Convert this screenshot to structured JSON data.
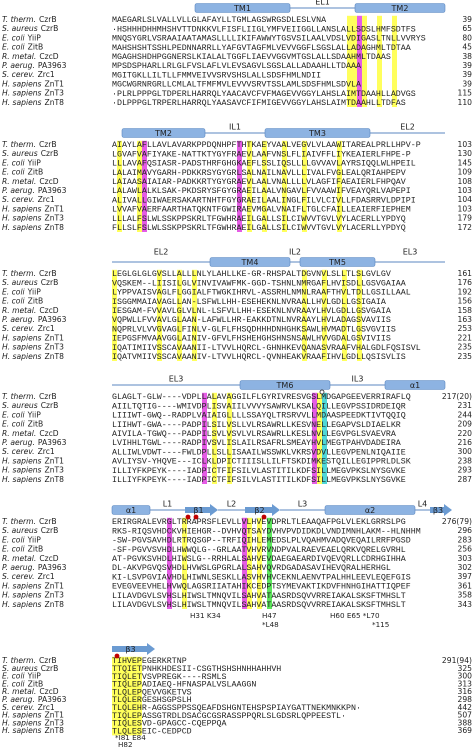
{
  "species": [
    {
      "genus": "T. therm.",
      "protein": "CzrB"
    },
    {
      "genus": "S. aureus",
      "protein": "CzrB"
    },
    {
      "genus": "E. coli",
      "protein": "YiiP"
    },
    {
      "genus": "E. coli",
      "protein": "ZitB"
    },
    {
      "genus": "R. metal.",
      "protein": "CzcD"
    },
    {
      "genus": "P. aerug.",
      "protein": "PA3963"
    },
    {
      "genus": "S. cerev.",
      "protein": "Zrc1"
    },
    {
      "genus": "H. sapiens",
      "protein": "ZnT1"
    },
    {
      "genus": "H. sapiens",
      "protein": "ZnT3"
    },
    {
      "genus": "H. sapiens",
      "protein": "ZnT8"
    }
  ],
  "blocks": [
    {
      "elements": [
        "TM1",
        "EL1",
        "TM2"
      ],
      "rows": [
        {
          "seq": "MAEGARLSLVALLVLLGLAFAYLLTGMLAGSWRGSDLESLVNA",
          "end": 39
        },
        {
          "seq": "·HSHHHDHHMHSHVTTDNKKVLFISFLIIGLYMFVEIIGGLLANSLALLSDSLHMFSDTFS",
          "end": 65
        },
        {
          "seq": "MNQSYGRLVSRAAIAATAMASLLLLIKIFAWWYTGSVSILAALVDSLVDIGASLTNLLVVRYS",
          "end": 80
        },
        {
          "seq": "MAHSHSHTSSHLPEDNNARRLLYAFGVTAGFMLVEVVGGFLSGSLALLADAGHMLTDTAA",
          "end": 45
        },
        {
          "seq": "MGAGHSHDHPGGNERSLKIALALTGGFLIAEVVGGVMTGSLALLSDAAHMLTDAAS",
          "end": 38
        },
        {
          "seq": "MPSDSPHARLLRLGLFVSLAFLVLEVSAGVLSGSLALLADAAHLLTDAAA",
          "end": 39
        },
        {
          "seq": "MGITGKLLILTLLFMMVEIVVSRVSHSLALLSDSFHMLNDII",
          "end": 39
        },
        {
          "seq": "MGCWGRNRGRLLCMLALTFMFMVLEVVVSRVTSSLAMLSDSFHMLSDVLA",
          "end": 39
        },
        {
          "seq": "·PLRLPPPGLTDPERLHARRQLYAACAVCFVFMAGEVVGGYLAHSLAIMTDAAHLLADVGS",
          "end": 115
        },
        {
          "seq": "·DLPPPGLTRPERLHARRQLYAASAVCFIFMIGEVVGGYLAHSLAIMTDAAHLLTDFAS",
          "end": 110
        }
      ],
      "annotations": []
    },
    {
      "elements": [
        "TM2",
        "IL1",
        "TM3",
        "EL2"
      ],
      "rows": [
        {
          "seq": "AIAYLAFLLAVLAVARKPPDQNHPFTHTKAEYVAALVEGVLVLAAWITAREALPRLLHPV-P",
          "end": 103
        },
        {
          "seq": "LGVAFVAFIYAKE-NATTKTYGYFRAEVLAAFVNSLFLIAIVFFLIYKEAIERLFHPE-P",
          "end": 130
        },
        {
          "seq": "LLLAVAFQSIASR-PADSTHRFGHGKAEFLSSLIQSLLLLGVVAVLAYRSIQQLWLHPEIL",
          "end": 145
        },
        {
          "seq": "LALAIMAVYGARH-PDKKRSYGYGRLSALNAILNAVLLLIVALFVGLEALQRIAHPEPV",
          "end": 109
        },
        {
          "seq": "LAIAASAIAIAR-PADKKRTYGYGRAEVLAALVNALLLLVLAGFIFAEAIERLFHPQAV",
          "end": 108
        },
        {
          "seq": "LALAWLALKLSAK-PKDSRYSFGYGRAEILAALVNGAVLFVVAAWIFVEAYQRLVAPEPI",
          "end": 103
        },
        {
          "seq": "ALIVALLGIWAERSAKARTNHTFGYGRAEILAALINGLFILVLCIVLLFDASRRVLDPIPI",
          "end": 104
        },
        {
          "seq": "LVVAFVAERFAARTHATQKNTFGWIRAEVMGALVNAIFLTGLCFAILLEAIERFIEPHEM",
          "end": 103
        },
        {
          "seq": "LLLALFSLWLSSKPPSKRLTFGWHRAEILGALLSILCIWVVTGVLVYLACERLLYPDYQ",
          "end": 179
        },
        {
          "seq": "FLLSLFSLWLSSKPPSKRLTFGWHRAEILGALLSILCIWVVTGVLVYLACERLLYPDYQ",
          "end": 172
        }
      ],
      "annotations": []
    },
    {
      "elements": [
        "EL2",
        "TM4",
        "IL2",
        "TM5",
        "EL3"
      ],
      "rows": [
        {
          "seq": "LEGLGLGLGVSLLALLLNLYLAHLLKE-GR-RHSPALTDGVNVLSLLTLSLGVLGV",
          "end": 161
        },
        {
          "seq": "VQSKEM--LIISILGLVINVIVAWFMK-GGD-TSHNLNMRGAFLHVISDLLGSVGAIAA",
          "end": 176
        },
        {
          "seq": "LYPPVAISVAGLFLGGIALFTWGKIHRVL-ASSRHLNMNLRAAFTHVLTDLLGSILLAAL",
          "end": 192
        },
        {
          "seq": "ISGGMMAIAVAGLLAN-LSFWLLHH-ESEHEKNLNVRAALLHVLGDLLGSIGAIA",
          "end": 156
        },
        {
          "seq": "IESGAM-FVVAVLGLVLNL-LSFVLLHH-ESEKNLNVRAAYLHVLGDLLGSVGAIA",
          "end": 158
        },
        {
          "seq": "VQPWLLFVVAVLGLAAN-LAFWLLHR-EAKKDTNLNVRAAYLHVLADAGSVAVIIS",
          "end": 163
        },
        {
          "seq": "NQPRLVLVVGVAGLFINLV-GLFLFHSQDHHHDNHGHKSAWLHVMADTLGSVGVIIS",
          "end": 253
        },
        {
          "seq": "IEPGSFMVAAVGGLAINIV-GFVLFHSHEHGHSHNSNSAWLHVVGDALGSVIVIIS",
          "end": 221
        },
        {
          "seq": "IQATIMIIVSSCAVAANII-LTVVLHQRCL-GHNHKEVQANASVRAAFVHALGDLFQSISVL",
          "end": 235
        },
        {
          "seq": "IQATVMIIVSSCAVAANIV-LTVVLHQRCL-QVNHEAKVRAAFIHVLGDLLQSISVLIS",
          "end": 235
        }
      ],
      "annotations": []
    },
    {
      "elements": [
        "EL3",
        "TM6",
        "IL3",
        "α1"
      ],
      "rows": [
        {
          "seq": "GLAGLT-GLW----VDPLLALAVAGGILFLGYRIVRESVGSLMDGAPGEEVERRIRAFLQ",
          "end": "217(20)"
        },
        {
          "seq": "AIILTQTIG----WMIVDPLISVAIILVVVYSAWRVLKSALQILLEGVPSSIDRDEIQR",
          "end": 231
        },
        {
          "seq": "LIIIWT-GWQ--RADPLVAIAIGLLLLSSAYQLTRSRVVLLMDAASPEEDKTIVTQQIQ",
          "end": 244
        },
        {
          "seq": "LIIHWT-GWA----PADPILSILVSLLVLRSAWRLLKESVNELLEGAPVSLDIAELKR",
          "end": 209
        },
        {
          "seq": "AIVILA-TGWQ---PADPILSVLVSVLVLRSAWRLLKESLNVLLEGVPGLSVAEVRA",
          "end": 220
        },
        {
          "seq": "LVIHHLTGWL----RADPIVSVLISLAILRSAFRLSMEAYHVLMEGTPAHVDADEIRA",
          "end": 216
        },
        {
          "seq": "ALLIWLVDWT----FWLDPLLSLLISAAILWSSWKLVKRSVDVLLEGVPENLNIQAIIE",
          "end": 300
        },
        {
          "seq": "AVLIYSV-YHQVE---ICLKLDPICTIIISLLILFTSKDIMKESTQILLEGIPPRLDLSK",
          "end": 238
        },
        {
          "seq": "ILLIYFKPEYK----IADPICTFIFSILVLASTITILKDFSILLMEGVPKSLNYSGVKE",
          "end": 293
        },
        {
          "seq": "ILLIYFKPEYK----IADPICTFIFSILVLASTITILKDFSILLMEGVPKSLNYSGVKE",
          "end": 287
        }
      ],
      "annotations": []
    },
    {
      "elements": [
        "α1",
        "L1",
        "β1",
        "L2",
        "β2",
        "L3",
        "α2",
        "L4",
        "β3"
      ],
      "rows": [
        {
          "seq": "ERIRGRALEVRGLTRRAPRSFLEVLLVLHVEVDPRLTLEAAQAFPGLVLEKLGRRSLPG",
          "end": "276(79)"
        },
        {
          "seq": "RKS-RIQSVHDCKVHIEHGR--DVHVQTSAYDVHVPVDIDKDLVNDIMNHLAKM--HLNHHM",
          "end": 296
        },
        {
          "seq": "-SW-PGVSAVHDLRTRQSGP--TRFIQIHLEMEDSLPLVQAHMVADQVEQAILRRFPGSD",
          "end": 283
        },
        {
          "seq": "-SF-PGVVSVHDLHWWQLG--GRLAATVHVRVNDPVALRAEVEAELQRKVQRELGVRHL",
          "end": 256
        },
        {
          "seq": "AT-PGVKSVHDLHIWSLG--RRHLALSAHVEVDAEGAEARDIVQEVQRLLCDRHGIHHA",
          "end": 303
        },
        {
          "seq": "DL-AKVPGVQSVHDLHVWSLGPGRLALSAHVQVRDGADASAVIHEVQRALHERHGL",
          "end": 302
        },
        {
          "seq": "KI-LSVPGVIAVHDLHIWNLSESKLLASVHVHVCEKNLAENVTPALHHLEEVLEQEFGIS",
          "end": 397
        },
        {
          "seq": "EVEGVEEVHELHVWQLAGSRIIATAHIKCEDPTSYMEVAKTIKDVFHNHGIHATTIQPEF",
          "end": 361
        },
        {
          "seq": "LILAVDGVLSVHSLHIWSLTMNQVILSAHVATAASRDSQVVRREIAKALSKSFTMHSLT",
          "end": 358
        },
        {
          "seq": "LILAVDGVLSVHSLHIWSLTMNQVILSAHVATAASRDSQVVRREIAKALSKSFTMHSLT",
          "end": 343
        }
      ],
      "annotations": [
        "H31 K34",
        "H47",
        "*L48",
        "H60 E65 *L70",
        "*115"
      ]
    },
    {
      "elements": [
        "β3"
      ],
      "rows": [
        {
          "seq": "TIHVEPEGERKRTNP",
          "end": "291(94)"
        },
        {
          "seq": "TTQIETPNHKHDESII-CSGTHSHSHNHHAHHVH",
          "end": 325
        },
        {
          "seq": "TIQLETVSVPREGK----RSMLS",
          "end": 300
        },
        {
          "seq": "TIQLEPADIAEQ-HFNASPALVSLAAGGN",
          "end": 313
        },
        {
          "seq": "TLQLEPQEVVGKETVS",
          "end": 316
        },
        {
          "seq": "TLQLERGESHSGPSLH",
          "end": 298
        },
        {
          "seq": "TLQLEHR-AGGSSPPSSQEAFDSHGNTEHSPSPIAYGATTNEKMNKKPN·",
          "end": 442
        },
        {
          "seq": "TIQLEPASSGTRDLDSACGCGSRASSPPQRLSLGDSRLQPPEESTL·",
          "end": 507
        },
        {
          "seq": "TIQLESVD-GPAGCC-CQEPPQA",
          "end": 388
        },
        {
          "seq": "TLQLESEIC-CEDPCD",
          "end": 369
        }
      ],
      "annotations": [
        "*I81 E84",
        "H82"
      ]
    }
  ]
}
